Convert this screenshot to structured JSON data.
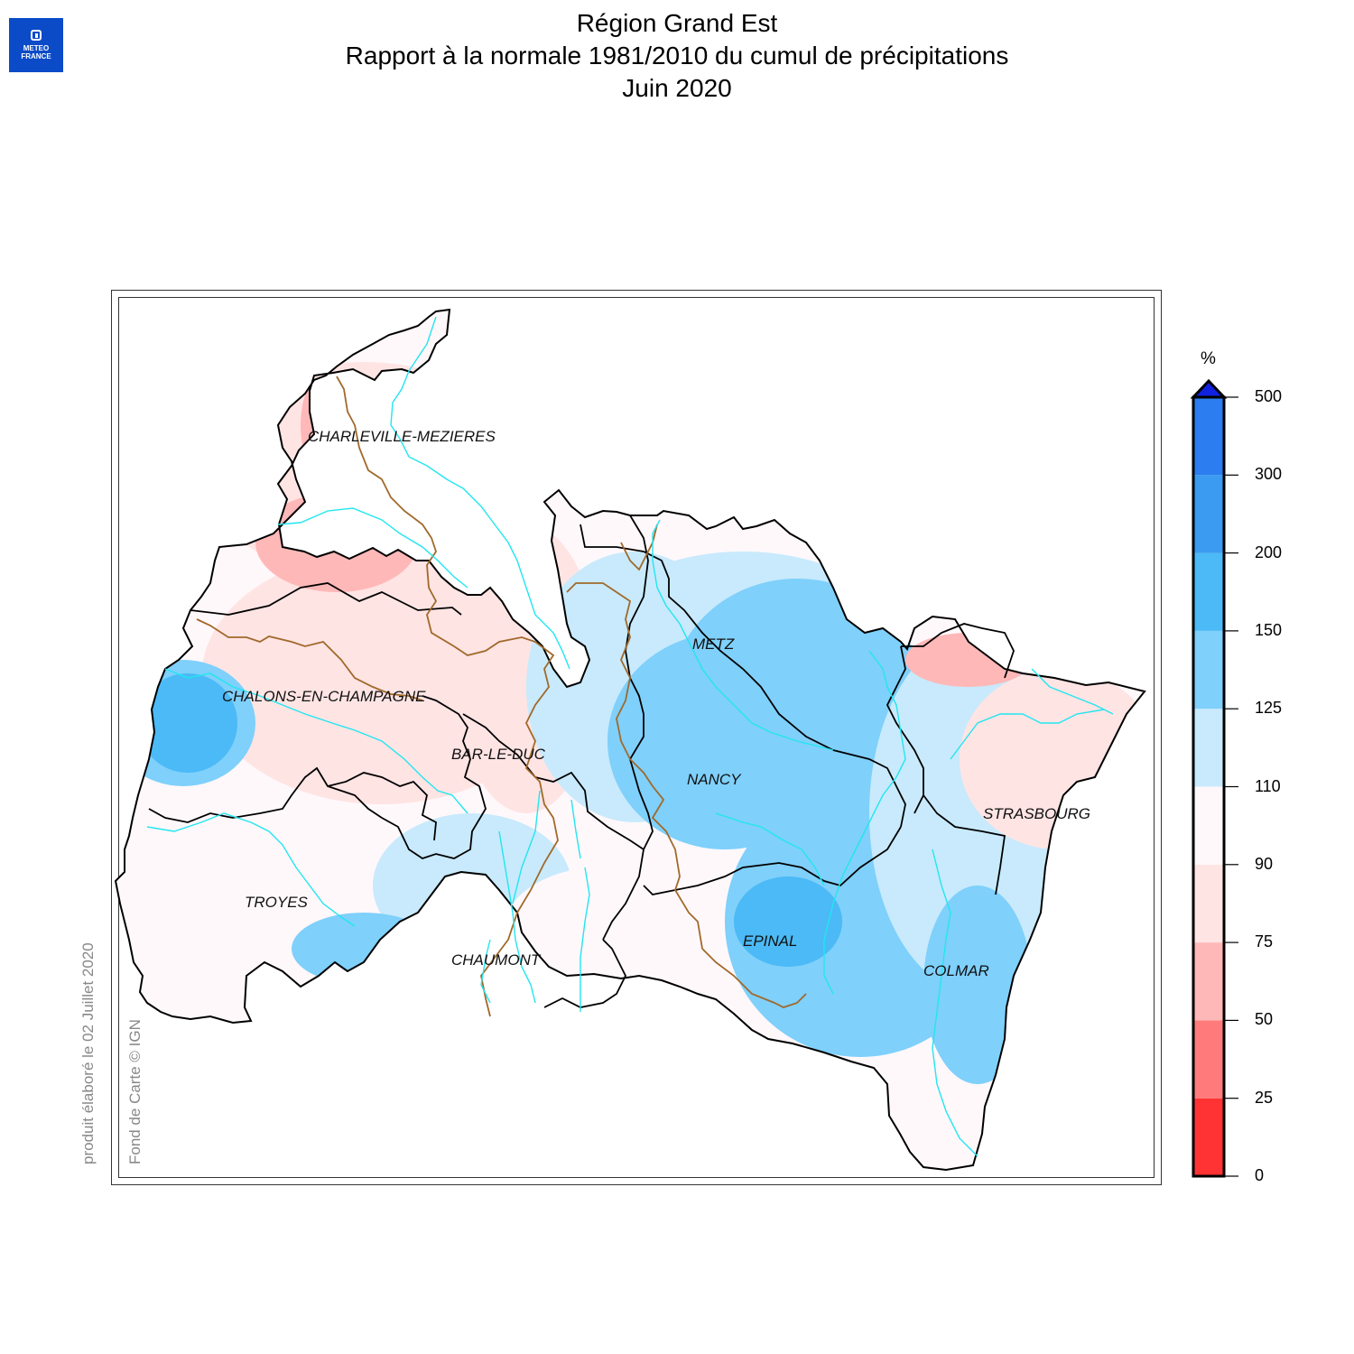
{
  "logo": {
    "line1": "METEO",
    "line2": "FRANCE"
  },
  "title": {
    "line1": "Région Grand Est",
    "line2": "Rapport à la normale 1981/2010 du cumul de précipitations",
    "line3": "Juin 2020"
  },
  "credits": {
    "produced": "produit élaboré le 02 Juillet 2020",
    "basemap": "Fond de Carte © IGN"
  },
  "cities": [
    {
      "name": "CHARLEVILLE-MEZIERES"
    },
    {
      "name": "METZ"
    },
    {
      "name": "CHALONS-EN-CHAMPAGNE"
    },
    {
      "name": "BAR-LE-DUC"
    },
    {
      "name": "NANCY"
    },
    {
      "name": "STRASBOURG"
    },
    {
      "name": "TROYES"
    },
    {
      "name": "EPINAL"
    },
    {
      "name": "CHAUMONT"
    },
    {
      "name": "COLMAR"
    }
  ],
  "legend": {
    "unit": "%",
    "ticks": [
      "0",
      "25",
      "50",
      "75",
      "90",
      "110",
      "125",
      "150",
      "200",
      "300",
      "500"
    ],
    "colors": [
      "#ff3333",
      "#ff7b7b",
      "#ffb8b8",
      "#ffe4e4",
      "#fff8fb",
      "#c8eafc",
      "#7fd0fb",
      "#4bbaf6",
      "#3a9bf0",
      "#2b7df0",
      "#1040ff"
    ],
    "overflow_color": "#1022e0"
  },
  "colors": {
    "river": "#22e6f0",
    "border_dept": "#000000",
    "border_basin": "#a0692a"
  }
}
